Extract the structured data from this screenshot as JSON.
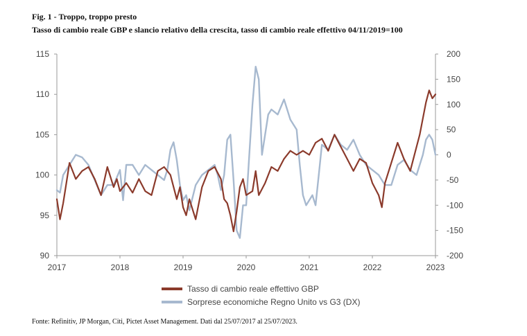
{
  "figure": {
    "title": "Fig. 1 - Troppo, troppo presto",
    "subtitle": "Tasso di cambio reale GBP e slancio relativo della crescita, tasso di cambio reale effettivo 04/11/2019=100",
    "source": "Fonte: Refinitiv, JP Morgan, Citi, Pictet Asset Management. Dati dal 25/07/2017 al 25/07/2023."
  },
  "colors": {
    "gbp": "#8b3a2b",
    "surprise": "#a7b9cf",
    "axis": "#9a9a9a",
    "text": "#444444"
  },
  "chart_data": {
    "type": "line",
    "title": "Tasso di cambio reale GBP e slancio relativo della crescita, tasso di cambio reale effettivo 04/11/2019=100",
    "xlabel": "",
    "ylabel": "",
    "x_ticks": [
      "2017",
      "2018",
      "2019",
      "2020",
      "2021",
      "2022",
      "2023"
    ],
    "x_range": [
      2017.0,
      2023.0
    ],
    "y_left_ticks": [
      "90",
      "95",
      "100",
      "105",
      "110",
      "115"
    ],
    "y_left_range": [
      90,
      115
    ],
    "y_right_ticks": [
      "200",
      "150",
      "100",
      "50",
      "0",
      "-50",
      "-100",
      "-150",
      "-200"
    ],
    "y_right_range": [
      -200,
      200
    ],
    "grid": false,
    "legend_position": "bottom-center",
    "series": [
      {
        "name": "Tasso di cambio reale effettivo GBP",
        "axis": "left",
        "color": "#8b3a2b",
        "x": [
          2017.0,
          2017.05,
          2017.1,
          2017.15,
          2017.2,
          2017.3,
          2017.4,
          2017.5,
          2017.6,
          2017.7,
          2017.8,
          2017.9,
          2017.95,
          2018.0,
          2018.1,
          2018.2,
          2018.3,
          2018.4,
          2018.5,
          2018.6,
          2018.7,
          2018.8,
          2018.9,
          2018.95,
          2019.0,
          2019.05,
          2019.1,
          2019.2,
          2019.3,
          2019.4,
          2019.5,
          2019.6,
          2019.65,
          2019.7,
          2019.75,
          2019.8,
          2019.85,
          2019.9,
          2019.95,
          2020.0,
          2020.1,
          2020.15,
          2020.2,
          2020.3,
          2020.4,
          2020.5,
          2020.6,
          2020.7,
          2020.8,
          2020.9,
          2021.0,
          2021.1,
          2021.2,
          2021.3,
          2021.4,
          2021.5,
          2021.6,
          2021.7,
          2021.8,
          2021.9,
          2022.0,
          2022.1,
          2022.15,
          2022.2,
          2022.3,
          2022.4,
          2022.5,
          2022.6,
          2022.7,
          2022.75,
          2022.8,
          2022.85,
          2022.9,
          2022.95,
          2023.0
        ],
        "values": [
          97.0,
          94.5,
          96.5,
          99.0,
          101.5,
          99.5,
          100.5,
          101.0,
          99.5,
          97.5,
          101.0,
          98.5,
          99.5,
          98.0,
          99.0,
          97.8,
          99.5,
          98.0,
          97.5,
          100.5,
          101.0,
          100.0,
          97.0,
          98.5,
          96.0,
          95.0,
          97.0,
          94.5,
          98.5,
          100.5,
          101.0,
          99.5,
          97.0,
          96.5,
          95.0,
          93.0,
          95.5,
          98.5,
          99.5,
          97.5,
          98.0,
          100.5,
          97.5,
          99.0,
          101.0,
          100.5,
          102.0,
          103.0,
          102.5,
          103.0,
          102.5,
          104.0,
          104.5,
          103.0,
          105.0,
          103.5,
          102.0,
          100.5,
          102.0,
          101.5,
          99.0,
          97.5,
          96.0,
          99.0,
          101.5,
          104.0,
          102.0,
          100.5,
          103.5,
          105.0,
          107.0,
          109.0,
          110.5,
          109.5,
          110.0
        ]
      },
      {
        "name": "Sorprese economiche Regno Unito vs G3 (DX)",
        "axis": "right",
        "color": "#a7b9cf",
        "x": [
          2017.0,
          2017.05,
          2017.1,
          2017.2,
          2017.3,
          2017.4,
          2017.5,
          2017.6,
          2017.7,
          2017.8,
          2017.9,
          2018.0,
          2018.05,
          2018.1,
          2018.2,
          2018.3,
          2018.4,
          2018.5,
          2018.6,
          2018.7,
          2018.75,
          2018.8,
          2018.85,
          2018.9,
          2018.95,
          2019.0,
          2019.05,
          2019.1,
          2019.2,
          2019.3,
          2019.4,
          2019.5,
          2019.55,
          2019.6,
          2019.65,
          2019.7,
          2019.75,
          2019.8,
          2019.85,
          2019.9,
          2019.95,
          2020.0,
          2020.05,
          2020.1,
          2020.15,
          2020.2,
          2020.25,
          2020.3,
          2020.35,
          2020.4,
          2020.5,
          2020.6,
          2020.7,
          2020.8,
          2020.85,
          2020.9,
          2020.95,
          2021.0,
          2021.05,
          2021.1,
          2021.15,
          2021.2,
          2021.3,
          2021.4,
          2021.5,
          2021.6,
          2021.7,
          2021.8,
          2021.9,
          2022.0,
          2022.1,
          2022.2,
          2022.3,
          2022.4,
          2022.5,
          2022.6,
          2022.7,
          2022.8,
          2022.85,
          2022.9,
          2022.95,
          2023.0
        ],
        "values": [
          -70,
          -75,
          -40,
          -20,
          0,
          -5,
          -20,
          -50,
          -80,
          -60,
          -60,
          -30,
          -90,
          -20,
          -20,
          -40,
          -20,
          -30,
          -40,
          -50,
          -30,
          10,
          25,
          -10,
          -60,
          -90,
          -80,
          -110,
          -60,
          -40,
          -30,
          -20,
          -40,
          -70,
          -40,
          30,
          40,
          -50,
          -150,
          -165,
          -100,
          -100,
          0,
          100,
          175,
          150,
          0,
          40,
          80,
          90,
          80,
          110,
          70,
          50,
          -20,
          -80,
          -100,
          -90,
          -80,
          -100,
          -40,
          20,
          10,
          40,
          20,
          10,
          30,
          0,
          -20,
          -30,
          -40,
          -60,
          -60,
          -20,
          -10,
          -30,
          -40,
          0,
          30,
          40,
          30,
          0
        ]
      }
    ]
  },
  "legend": {
    "gbp_label": "Tasso di cambio reale effettivo GBP",
    "surprise_label": "Sorprese economiche Regno Unito vs G3 (DX)"
  }
}
